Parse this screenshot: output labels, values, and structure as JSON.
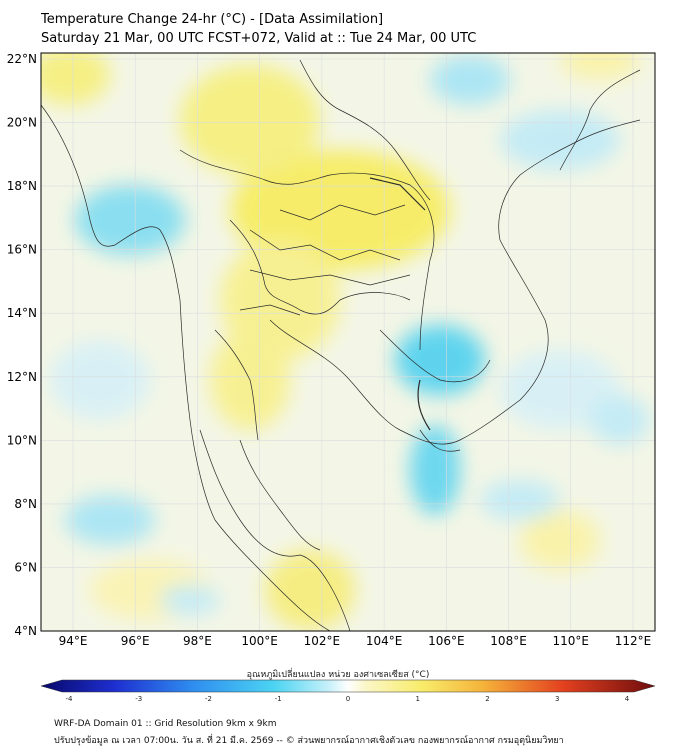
{
  "header": {
    "title_line1": "Temperature Change 24-hr (°C) - [Data Assimilation]",
    "title_line2": "Saturday 21 Mar, 00 UTC FCST+072, Valid at :: Tue 24 Mar, 00 UTC"
  },
  "map": {
    "lat_labels": [
      "22°N",
      "20°N",
      "18°N",
      "16°N",
      "14°N",
      "12°N",
      "10°N",
      "8°N",
      "6°N",
      "4°N"
    ],
    "lon_labels": [
      "94°E",
      "96°E",
      "98°E",
      "100°E",
      "102°E",
      "104°E",
      "106°E",
      "108°E",
      "110°E",
      "112°E"
    ],
    "colors": {
      "warm": "#f7f07a",
      "warm_light": "#fbf7b8",
      "cool": "#5fd3ef",
      "cool_light": "#bfeaf7",
      "border": "#2a2a2a"
    }
  },
  "colorbar": {
    "label": "อุณหภูมิเปลี่ยนแปลง หน่วย องศาเซลเซียส (°C)",
    "ticks": [
      "-4",
      "-3",
      "-2",
      "-1",
      "0",
      "1",
      "2",
      "3",
      "4"
    ],
    "range": [
      -4,
      4
    ]
  },
  "footer": {
    "line1": "WRF-DA Domain 01 :: Grid Resolution 9km x 9km",
    "line2": "ปรับปรุงข้อมูล ณ เวลา 07:00น. วัน ส. ที่ 21 มี.ค. 2569 -- © ส่วนพยากรณ์อากาศเชิงตัวเลข กองพยากรณ์อากาศ กรมอุตุนิยมวิทยา"
  }
}
